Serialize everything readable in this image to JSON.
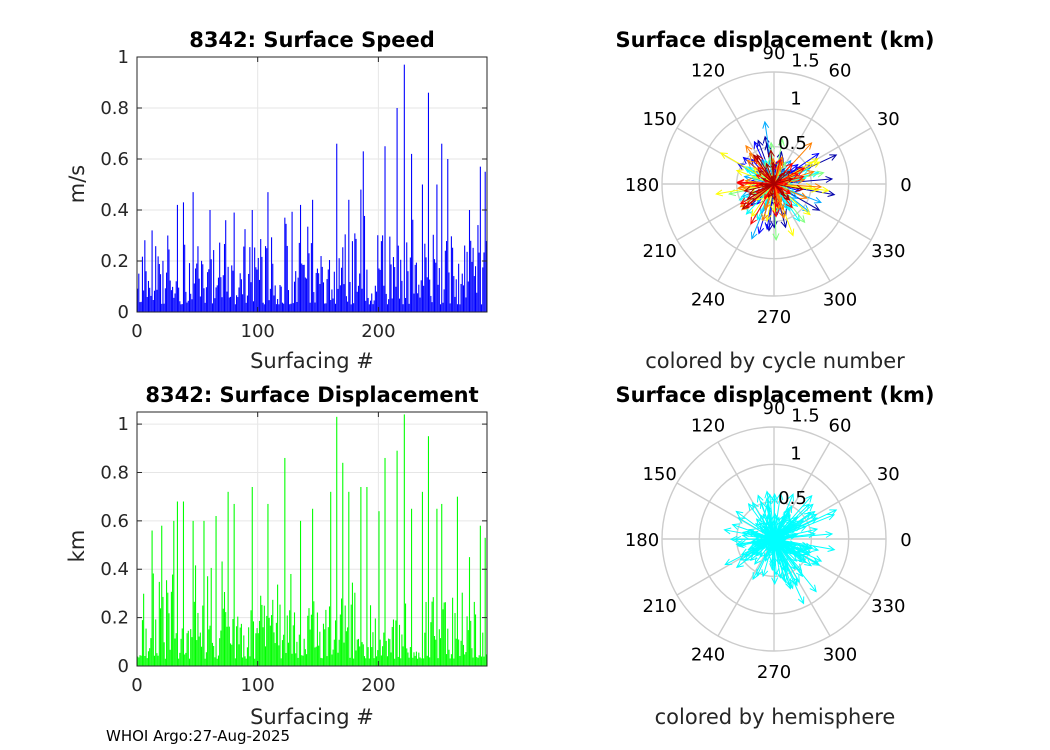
{
  "footer": "WHOI Argo:27-Aug-2025",
  "chart_data": [
    {
      "type": "bar",
      "title": "8342: Surface Speed",
      "xlabel": "Surfacing #",
      "ylabel": "m/s",
      "xlim": [
        0,
        290
      ],
      "ylim": [
        0,
        1
      ],
      "xticks": [
        "0",
        "100",
        "200"
      ],
      "yticks": [
        "0",
        "0.2",
        "0.4",
        "0.6",
        "0.8",
        "1"
      ],
      "grid": true,
      "color": "#0000ff",
      "n": 290,
      "peaks": [
        [
          12,
          0.32
        ],
        [
          25,
          0.3
        ],
        [
          33,
          0.42
        ],
        [
          38,
          0.43
        ],
        [
          46,
          0.47
        ],
        [
          60,
          0.4
        ],
        [
          73,
          0.36
        ],
        [
          80,
          0.39
        ],
        [
          95,
          0.4
        ],
        [
          108,
          0.47
        ],
        [
          122,
          0.37
        ],
        [
          135,
          0.42
        ],
        [
          145,
          0.44
        ],
        [
          165,
          0.66
        ],
        [
          175,
          0.44
        ],
        [
          185,
          0.48
        ],
        [
          187,
          0.63
        ],
        [
          205,
          0.65
        ],
        [
          215,
          0.8
        ],
        [
          221,
          0.97
        ],
        [
          227,
          0.62
        ],
        [
          236,
          0.5
        ],
        [
          241,
          0.86
        ],
        [
          248,
          0.5
        ],
        [
          252,
          0.66
        ],
        [
          257,
          0.6
        ],
        [
          275,
          0.4
        ],
        [
          284,
          0.57
        ],
        [
          288,
          0.55
        ]
      ]
    },
    {
      "type": "bar",
      "title": "8342: Surface Displacement",
      "xlabel": "Surfacing #",
      "ylabel": "km",
      "xlim": [
        0,
        290
      ],
      "ylim": [
        0,
        1.05
      ],
      "xticks": [
        "0",
        "100",
        "200"
      ],
      "yticks": [
        "0",
        "0.2",
        "0.4",
        "0.6",
        "0.8",
        "1"
      ],
      "grid": true,
      "color": "#00ff00",
      "n": 290,
      "peaks": [
        [
          12,
          0.56
        ],
        [
          20,
          0.58
        ],
        [
          30,
          0.6
        ],
        [
          33,
          0.68
        ],
        [
          38,
          0.68
        ],
        [
          46,
          0.6
        ],
        [
          55,
          0.6
        ],
        [
          65,
          0.62
        ],
        [
          75,
          0.72
        ],
        [
          80,
          0.67
        ],
        [
          95,
          0.74
        ],
        [
          108,
          0.67
        ],
        [
          122,
          0.86
        ],
        [
          135,
          0.6
        ],
        [
          145,
          0.65
        ],
        [
          160,
          0.72
        ],
        [
          165,
          1.03
        ],
        [
          170,
          0.84
        ],
        [
          175,
          0.72
        ],
        [
          185,
          0.74
        ],
        [
          190,
          0.74
        ],
        [
          200,
          0.64
        ],
        [
          205,
          0.86
        ],
        [
          215,
          0.89
        ],
        [
          221,
          1.04
        ],
        [
          227,
          0.65
        ],
        [
          236,
          0.72
        ],
        [
          241,
          0.95
        ],
        [
          248,
          0.65
        ],
        [
          252,
          0.67
        ],
        [
          265,
          0.7
        ],
        [
          275,
          0.45
        ],
        [
          284,
          0.58
        ],
        [
          288,
          0.53
        ]
      ]
    },
    {
      "type": "polar",
      "title": "Surface displacement (km)",
      "xlabel": "colored by cycle number",
      "rmax": 1.5,
      "rticks": [
        "0.5",
        "1",
        "1.5"
      ],
      "theta_labels": [
        "0",
        "30",
        "60",
        "90",
        "120",
        "150",
        "180",
        "210",
        "240",
        "270",
        "300",
        "330"
      ],
      "color_mode": "cycle",
      "colormap": [
        "#0000aa",
        "#0000ff",
        "#00aaff",
        "#00ffff",
        "#7fff7f",
        "#ffff00",
        "#ff7f00",
        "#ff0000",
        "#aa0000"
      ],
      "grid_color": "#cccccc"
    },
    {
      "type": "polar",
      "title": "Surface displacement (km)",
      "xlabel": "colored by hemisphere",
      "rmax": 1.5,
      "rticks": [
        "0.5",
        "1",
        "1.5"
      ],
      "theta_labels": [
        "0",
        "30",
        "60",
        "90",
        "120",
        "150",
        "180",
        "210",
        "240",
        "270",
        "300",
        "330"
      ],
      "color_mode": "hemisphere",
      "color": "#00ffff",
      "grid_color": "#cccccc"
    }
  ]
}
